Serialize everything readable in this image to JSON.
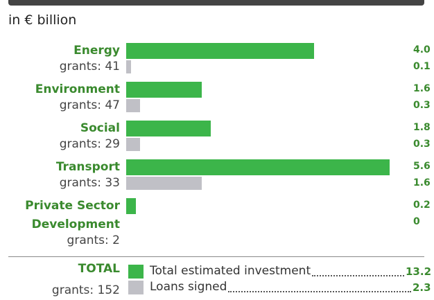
{
  "chart_data": {
    "type": "bar",
    "orientation": "horizontal",
    "subtitle": "in € billion",
    "categories": [
      "Energy",
      "Environment",
      "Social",
      "Transport",
      "Private Sector Development"
    ],
    "grant_labels": [
      "grants: 41",
      "grants: 47",
      "grants: 29",
      "grants: 33",
      "grants: 2"
    ],
    "series": [
      {
        "name": "Total estimated investment",
        "color": "#3cb54a",
        "values": [
          4.0,
          1.6,
          1.8,
          5.6,
          0.2
        ],
        "value_labels": [
          "4.0",
          "1.6",
          "1.8",
          "5.6",
          "0.2"
        ],
        "total": 13.2,
        "total_label": "13.2"
      },
      {
        "name": "Loans signed",
        "color": "#c0c0c6",
        "values": [
          0.1,
          0.3,
          0.3,
          1.6,
          0
        ],
        "value_labels": [
          "0.1",
          "0.3",
          "0.3",
          "1.6",
          "0"
        ],
        "total": 2.3,
        "total_label": "2.3"
      }
    ],
    "total_label": "TOTAL",
    "total_grants_label": "grants: 152"
  }
}
